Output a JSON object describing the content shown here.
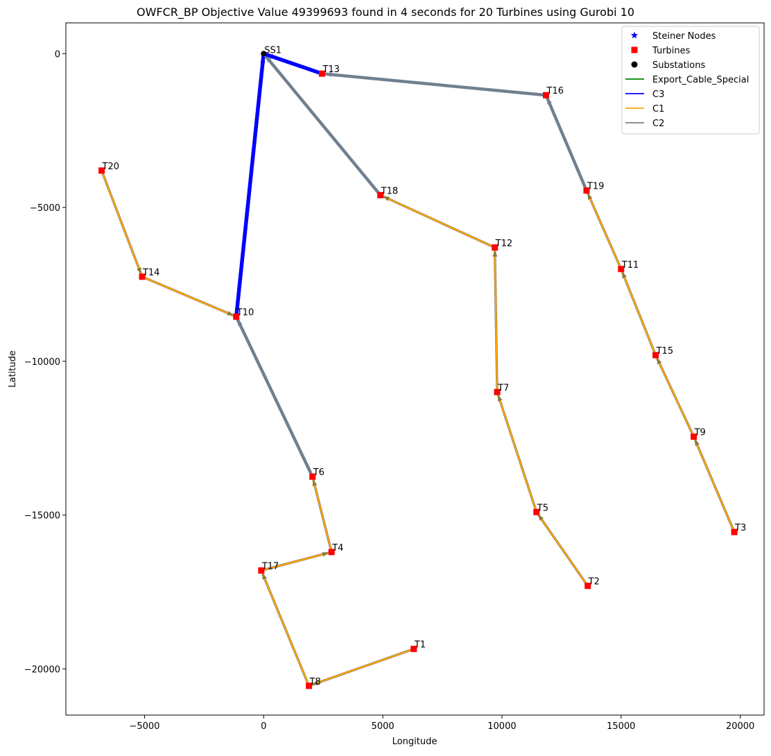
{
  "chart_data": {
    "type": "network",
    "title": "OWFCR_BP Objective Value 49399693 found in 4 seconds for 20 Turbines using Gurobi 10",
    "xlabel": "Longitude",
    "ylabel": "Latitude",
    "xlim": [
      -8300,
      21000
    ],
    "ylim": [
      -21500,
      1000
    ],
    "xticks": [
      -5000,
      0,
      5000,
      10000,
      15000,
      20000
    ],
    "yticks": [
      -20000,
      -15000,
      -10000,
      -5000,
      0
    ],
    "legend_position": "top-right",
    "legend": [
      {
        "label": "Steiner Nodes",
        "marker": "star",
        "color": "#0000ff"
      },
      {
        "label": "Turbines",
        "marker": "square",
        "color": "#ff0000"
      },
      {
        "label": "Substations",
        "marker": "circle",
        "color": "#000000"
      },
      {
        "label": "Export_Cable_Special",
        "marker": "line",
        "color": "#008000"
      },
      {
        "label": "C3",
        "marker": "line",
        "color": "#0000ff"
      },
      {
        "label": "C1",
        "marker": "line",
        "color": "#ffa500"
      },
      {
        "label": "C2",
        "marker": "line",
        "color": "#808080"
      }
    ],
    "substations": [
      {
        "label": "SS1",
        "x": 0,
        "y": 0
      }
    ],
    "turbines": [
      {
        "label": "T1",
        "x": 6300,
        "y": -19350
      },
      {
        "label": "T2",
        "x": 13600,
        "y": -17300
      },
      {
        "label": "T3",
        "x": 19750,
        "y": -15550
      },
      {
        "label": "T4",
        "x": 2850,
        "y": -16200
      },
      {
        "label": "T5",
        "x": 11450,
        "y": -14900
      },
      {
        "label": "T6",
        "x": 2050,
        "y": -13750
      },
      {
        "label": "T7",
        "x": 9800,
        "y": -11000
      },
      {
        "label": "T8",
        "x": 1900,
        "y": -20550
      },
      {
        "label": "T9",
        "x": 18050,
        "y": -12450
      },
      {
        "label": "T10",
        "x": -1150,
        "y": -8550
      },
      {
        "label": "T11",
        "x": 15000,
        "y": -7000
      },
      {
        "label": "T12",
        "x": 9700,
        "y": -6300
      },
      {
        "label": "T13",
        "x": 2450,
        "y": -650
      },
      {
        "label": "T14",
        "x": -5100,
        "y": -7250
      },
      {
        "label": "T15",
        "x": 16450,
        "y": -9800
      },
      {
        "label": "T16",
        "x": 11850,
        "y": -1350
      },
      {
        "label": "T17",
        "x": -100,
        "y": -16800
      },
      {
        "label": "T18",
        "x": 4900,
        "y": -4600
      },
      {
        "label": "T19",
        "x": 13550,
        "y": -4450
      },
      {
        "label": "T20",
        "x": -6800,
        "y": -3800
      }
    ],
    "cables": [
      {
        "from": "T1",
        "to": "T8",
        "type": "C1"
      },
      {
        "from": "T8",
        "to": "T17",
        "type": "C1"
      },
      {
        "from": "T17",
        "to": "T4",
        "type": "C1"
      },
      {
        "from": "T4",
        "to": "T6",
        "type": "C1"
      },
      {
        "from": "T6",
        "to": "T10",
        "type": "C2"
      },
      {
        "from": "T20",
        "to": "T14",
        "type": "C1"
      },
      {
        "from": "T14",
        "to": "T10",
        "type": "C1"
      },
      {
        "from": "T10",
        "to": "SS1",
        "type": "C3"
      },
      {
        "from": "T2",
        "to": "T5",
        "type": "C1"
      },
      {
        "from": "T5",
        "to": "T7",
        "type": "C1"
      },
      {
        "from": "T7",
        "to": "T12",
        "type": "C1"
      },
      {
        "from": "T12",
        "to": "T18",
        "type": "C1"
      },
      {
        "from": "T18",
        "to": "SS1",
        "type": "C2"
      },
      {
        "from": "T3",
        "to": "T9",
        "type": "C1"
      },
      {
        "from": "T9",
        "to": "T15",
        "type": "C1"
      },
      {
        "from": "T15",
        "to": "T11",
        "type": "C1"
      },
      {
        "from": "T11",
        "to": "T19",
        "type": "C1"
      },
      {
        "from": "T19",
        "to": "T16",
        "type": "C2"
      },
      {
        "from": "T16",
        "to": "T13",
        "type": "C2"
      },
      {
        "from": "T13",
        "to": "SS1",
        "type": "C3"
      }
    ]
  }
}
